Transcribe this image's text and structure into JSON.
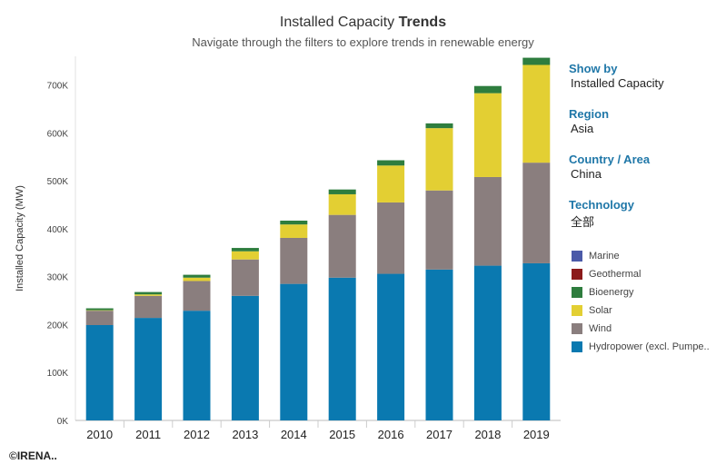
{
  "header": {
    "title_prefix": "Installed Capacity",
    "title_bold": "Trends",
    "subtitle": "Navigate through the filters to explore trends in renewable energy"
  },
  "filters": [
    {
      "label": "Show by",
      "value": "Installed Capacity"
    },
    {
      "label": "Region",
      "value": "Asia"
    },
    {
      "label": "Country / Area",
      "value": "China"
    },
    {
      "label": "Technology",
      "value": "全部"
    }
  ],
  "legend": [
    {
      "name": "Marine",
      "color": "#4b5aa8"
    },
    {
      "name": "Geothermal",
      "color": "#8b1a1a"
    },
    {
      "name": "Bioenergy",
      "color": "#2e7d3e"
    },
    {
      "name": "Solar",
      "color": "#e3cf33"
    },
    {
      "name": "Wind",
      "color": "#8a7e7e"
    },
    {
      "name": "Hydropower (excl. Pumpe..",
      "color": "#0a79b0"
    }
  ],
  "copyright": "©IRENA..",
  "chart_data": {
    "type": "bar",
    "stacked": true,
    "ylabel": "Installed Capacity (MW)",
    "xlabel": "",
    "ylim": [
      0,
      760000
    ],
    "yticks": [
      0,
      100000,
      200000,
      300000,
      400000,
      500000,
      600000,
      700000
    ],
    "ytick_labels": [
      "0K",
      "100K",
      "200K",
      "300K",
      "400K",
      "500K",
      "600K",
      "700K"
    ],
    "categories": [
      "2010",
      "2011",
      "2012",
      "2013",
      "2014",
      "2015",
      "2016",
      "2017",
      "2018",
      "2019"
    ],
    "series": [
      {
        "name": "Hydropower (excl. Pumpe..",
        "color": "#0a79b0",
        "values": [
          199000,
          214000,
          229000,
          260000,
          285000,
          298000,
          306000,
          315000,
          323000,
          328000
        ]
      },
      {
        "name": "Wind",
        "color": "#8a7e7e",
        "values": [
          30000,
          46000,
          62000,
          76000,
          96000,
          131000,
          149000,
          165000,
          185000,
          210000
        ]
      },
      {
        "name": "Solar",
        "color": "#e3cf33",
        "values": [
          1000,
          3000,
          7000,
          17000,
          28000,
          43000,
          77000,
          130000,
          175000,
          204000
        ]
      },
      {
        "name": "Bioenergy",
        "color": "#2e7d3e",
        "values": [
          4000,
          5000,
          6000,
          7000,
          8000,
          10000,
          11000,
          10000,
          15000,
          15000
        ]
      },
      {
        "name": "Geothermal",
        "color": "#8b1a1a",
        "values": [
          0,
          0,
          0,
          0,
          0,
          0,
          0,
          0,
          0,
          0
        ]
      },
      {
        "name": "Marine",
        "color": "#4b5aa8",
        "values": [
          0,
          0,
          0,
          0,
          0,
          0,
          0,
          0,
          0,
          0
        ]
      }
    ]
  }
}
